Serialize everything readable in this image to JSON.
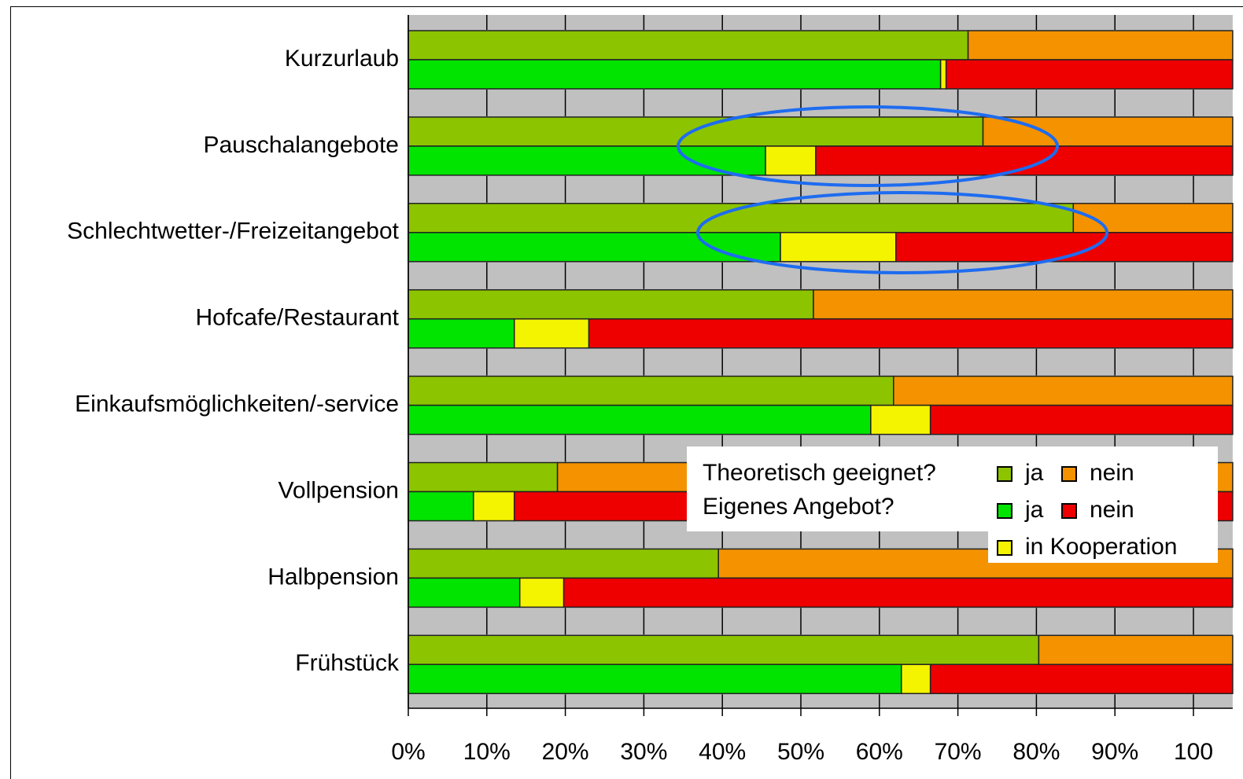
{
  "chart_data": {
    "type": "stacked_bar_horizontal",
    "categories": [
      "Kurzurlaub",
      "Pauschalangebote",
      "Schlechtwetter-/Freizeitangebot",
      "Hofcafe/Restaurant",
      "Einkaufsmöglichkeiten/-service",
      "Vollpension",
      "Halbpension",
      "Frühstück"
    ],
    "legend_groups": [
      "Theoretisch geeignet?",
      "Eigenes Angebot?"
    ],
    "series": [
      {
        "name": "ja",
        "color": "#8cc400",
        "group": 0,
        "values": [
          71.3,
          73.2,
          84.7,
          51.6,
          61.8,
          19.0,
          39.5,
          80.3
        ]
      },
      {
        "name": "nein",
        "color": "#f49200",
        "group": 0,
        "values": [
          33.7,
          31.8,
          20.3,
          53.4,
          43.2,
          86.0,
          65.5,
          24.7
        ]
      },
      {
        "name": "ja",
        "color": "#00e400",
        "group": 1,
        "values": [
          67.8,
          45.5,
          47.4,
          13.5,
          58.9,
          8.3,
          14.2,
          62.8
        ]
      },
      {
        "name": "in Kooperation",
        "color": "#f4f400",
        "group": 1,
        "values": [
          0.7,
          6.4,
          14.7,
          9.5,
          7.6,
          5.2,
          5.6,
          3.7
        ]
      },
      {
        "name": "nein",
        "color": "#ee0000",
        "group": 1,
        "values": [
          36.5,
          53.1,
          42.9,
          82.0,
          38.5,
          91.5,
          85.2,
          38.5
        ]
      }
    ],
    "xlim": [
      0,
      105
    ],
    "xticks": [
      {
        "value": 0,
        "label": "0%"
      },
      {
        "value": 10,
        "label": "10%"
      },
      {
        "value": 20,
        "label": "20%"
      },
      {
        "value": 30,
        "label": "30%"
      },
      {
        "value": 40,
        "label": "40%"
      },
      {
        "value": 50,
        "label": "50%"
      },
      {
        "value": 60,
        "label": "60%"
      },
      {
        "value": 70,
        "label": "70%"
      },
      {
        "value": 80,
        "label": "80%"
      },
      {
        "value": 90,
        "label": "90%"
      },
      100
    ],
    "grid": true
  }
}
